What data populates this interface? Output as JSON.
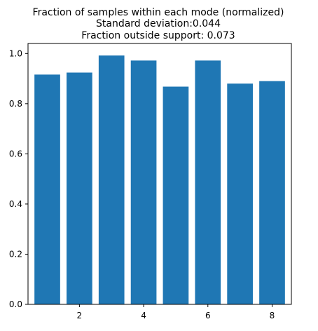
{
  "chart_data": {
    "type": "bar",
    "title_lines": [
      "Fraction of samples within each mode (normalized)",
      "Standard deviation:0.044",
      "Fraction outside support: 0.073"
    ],
    "xlabel": "",
    "ylabel": "",
    "categories": [
      1,
      2,
      3,
      4,
      5,
      6,
      7,
      8
    ],
    "values": [
      0.916,
      0.924,
      0.992,
      0.972,
      0.868,
      0.972,
      0.88,
      0.89
    ],
    "xlim": [
      0.4,
      8.6
    ],
    "ylim": [
      0.0,
      1.04
    ],
    "x_ticks": [
      2,
      4,
      6,
      8
    ],
    "x_tick_labels": [
      "2",
      "4",
      "6",
      "8"
    ],
    "y_ticks": [
      0.0,
      0.2,
      0.4,
      0.6,
      0.8,
      1.0
    ],
    "y_tick_labels": [
      "0.0",
      "0.2",
      "0.4",
      "0.6",
      "0.8",
      "1.0"
    ],
    "bar_width": 0.8,
    "bar_color": "#1f77b4",
    "grid": false,
    "legend": "none"
  }
}
